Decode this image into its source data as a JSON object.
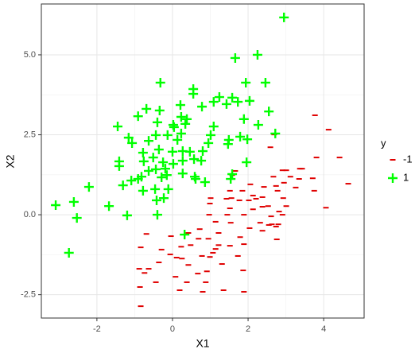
{
  "chart_data": {
    "type": "scatter",
    "x_label": "X1",
    "y_label": "X2",
    "legend_title": "y",
    "xlim": [
      -3.47,
      5.07
    ],
    "ylim": [
      -3.23,
      6.59
    ],
    "xticks": [
      -2,
      0,
      2,
      4
    ],
    "yticks": [
      -2.5,
      {
        "value": 0,
        "label": "0.0"
      },
      2.5,
      {
        "value": 5,
        "label": "5.0"
      }
    ],
    "grid": true,
    "series": [
      {
        "name": "-1",
        "color": "#e00000",
        "marker": "dash",
        "x": [
          3.77,
          4.13,
          4.42,
          4.65,
          3.81,
          2.69,
          2.59,
          2.91,
          3.01,
          3.37,
          3.43,
          3.12,
          3.35,
          3.71,
          2.67,
          2.95,
          3.26,
          3.75,
          4.06,
          2.74,
          2.42,
          2.06,
          1.66,
          1.58,
          1.85,
          1.43,
          1.52,
          0.99,
          0.97,
          1.14,
          1.45,
          1.77,
          1.89,
          2.04,
          2.38,
          2.74,
          2.61,
          2.82,
          2.91,
          2.93,
          3.01,
          2.38,
          2.32,
          2.13,
          1.89,
          1.79,
          1.52,
          1.73,
          1.54,
          1.22,
          0.95,
          1.22,
          0.72,
          0.42,
          0.48,
          0.69,
          0.23,
          0.11,
          1.07,
          1.14,
          0.99,
          -0.04,
          -0.29,
          -0.69,
          -0.84,
          -0.88,
          -0.63,
          -0.36,
          -0.06,
          0.25,
          0.42,
          0.67,
          0.91,
          1.31,
          1.87,
          0.08,
          0.38,
          0.88,
          1.35,
          1.89,
          0.8,
          0.19,
          -0.44,
          -0.86,
          -0.84,
          -0.74,
          2.76,
          2.8,
          0.78,
          1.01,
          1.56,
          2.13,
          2.53,
          2.21,
          2.38,
          2.78,
          2.63,
          2.02,
          2.55,
          1.52
        ],
        "y": [
          3.11,
          2.66,
          1.79,
          0.97,
          1.79,
          2.51,
          2.11,
          1.39,
          1.39,
          1.44,
          1.44,
          1.19,
          1.12,
          1.14,
          1.19,
          1.0,
          0.85,
          0.75,
          0.22,
          0.9,
          0.87,
          0.95,
          1.37,
          1.24,
          0.75,
          0.5,
          0.2,
          0.35,
          0.0,
          -0.22,
          0.0,
          0.45,
          0.0,
          -0.42,
          -0.5,
          -0.37,
          -0.05,
          0.1,
          0.0,
          0.52,
          0.27,
          0.25,
          -0.25,
          0.17,
          -0.92,
          -0.7,
          -0.97,
          -1.29,
          -0.25,
          -0.57,
          -0.75,
          -0.95,
          -0.45,
          -0.57,
          -0.95,
          -0.75,
          -1.0,
          -1.34,
          -1.19,
          -1.07,
          -1.32,
          -0.67,
          -1.09,
          -0.6,
          -1.02,
          -1.69,
          -1.69,
          -1.49,
          -1.24,
          -1.37,
          -1.57,
          -1.84,
          -1.77,
          -1.54,
          -1.74,
          -1.94,
          -2.11,
          -2.11,
          -2.36,
          -2.41,
          -2.41,
          -2.36,
          -2.11,
          -2.26,
          -2.86,
          -1.82,
          -0.77,
          -0.3,
          -1.29,
          0.52,
          0.52,
          0.6,
          0.27,
          0.5,
          0.55,
          0.75,
          -0.3,
          0.45,
          -0.32,
          0.75
        ]
      },
      {
        "name": "1",
        "color": "#00ff00",
        "marker": "plus",
        "x": [
          2.95,
          2.25,
          1.66,
          -0.32,
          0.55,
          1.94,
          2.46,
          0.55,
          1.24,
          1.58,
          2.04,
          1.09,
          0.21,
          0.78,
          2.55,
          -0.69,
          -0.34,
          1.73,
          1.43,
          1.89,
          -1.45,
          -1.16,
          -1.07,
          -0.91,
          -0.4,
          0.23,
          0.38,
          0.34,
          0.02,
          1.09,
          2.27,
          2.72,
          1.01,
          1.79,
          1.49,
          1.47,
          1.98,
          0.13,
          0.23,
          -0.13,
          -0.44,
          -0.63,
          -0.78,
          0.0,
          0.27,
          0.46,
          0.95,
          0.8,
          0.76,
          0.02,
          0.27,
          0.57,
          -0.51,
          -0.25,
          -0.19,
          -0.15,
          -0.44,
          -0.76,
          -1.41,
          -1.41,
          -1.09,
          -1.31,
          -0.82,
          -0.63,
          -0.29,
          0.27,
          0.61,
          0.86,
          0.59,
          -0.46,
          -0.11,
          -0.78,
          -0.23,
          -0.42,
          -2.21,
          -1.68,
          -3.09,
          -2.61,
          -2.53,
          -1.2,
          -0.4,
          -2.74,
          0.32,
          1.58,
          1.96,
          1.54,
          0.04,
          -0.36,
          -0.91
        ],
        "y": [
          6.17,
          5.0,
          4.9,
          4.13,
          3.93,
          4.13,
          4.13,
          3.78,
          3.68,
          3.66,
          3.56,
          3.53,
          3.43,
          3.38,
          3.23,
          3.31,
          3.26,
          3.53,
          3.46,
          2.99,
          2.76,
          2.41,
          2.24,
          3.08,
          2.89,
          3.06,
          2.99,
          2.84,
          2.81,
          2.76,
          2.81,
          2.54,
          2.49,
          2.44,
          2.34,
          2.21,
          2.36,
          2.34,
          2.54,
          2.49,
          2.49,
          2.31,
          1.94,
          1.97,
          1.99,
          1.97,
          2.24,
          1.99,
          1.69,
          1.59,
          1.69,
          1.74,
          1.79,
          1.64,
          1.44,
          1.24,
          1.42,
          1.67,
          1.67,
          1.52,
          1.07,
          0.92,
          1.19,
          1.37,
          1.17,
          1.29,
          1.12,
          1.02,
          1.19,
          0.8,
          0.8,
          0.75,
          0.52,
          0.45,
          0.87,
          0.27,
          0.3,
          0.4,
          -0.1,
          -0.02,
          0.0,
          -1.19,
          -0.62,
          1.27,
          1.64,
          1.12,
          2.74,
          2.04,
          1.12
        ]
      }
    ]
  }
}
